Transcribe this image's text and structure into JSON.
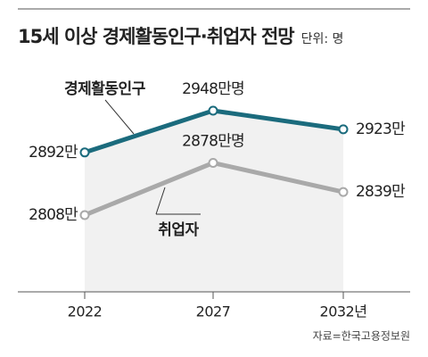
{
  "chart_data": {
    "type": "line",
    "title": "15세 이상 경제활동인구·취업자 전망",
    "unit": "단위: 명",
    "source": "자료=한국고용정보원",
    "categories": [
      "2022",
      "2027",
      "2032년"
    ],
    "series": [
      {
        "name": "경제활동인구",
        "color": "#1b6b7d",
        "values": [
          2892,
          2948,
          2923
        ],
        "value_labels": [
          "2892만",
          "2948만명",
          "2923만"
        ]
      },
      {
        "name": "취업자",
        "color": "#a9a9a9",
        "values": [
          2808,
          2878,
          2839
        ],
        "value_labels": [
          "2808만",
          "2878만명",
          "2839만"
        ]
      }
    ]
  }
}
